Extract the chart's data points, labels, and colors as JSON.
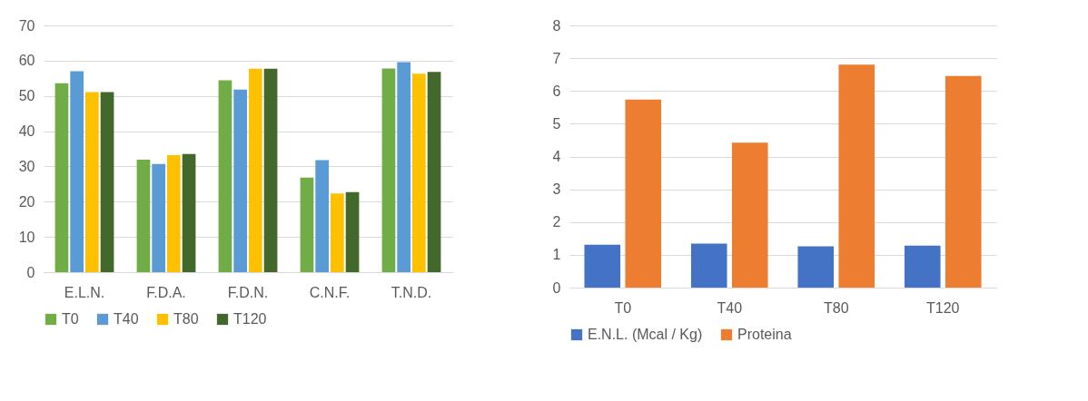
{
  "chart_data": [
    {
      "type": "bar",
      "categories": [
        "E.L.N.",
        "F.D.A.",
        "F.D.N.",
        "C.N.F.",
        "T.N.D."
      ],
      "series": [
        {
          "name": "T0",
          "color": "#70ad47",
          "values": [
            53.6,
            31.9,
            54.4,
            26.8,
            57.8
          ]
        },
        {
          "name": "T40",
          "color": "#5b9bd5",
          "values": [
            57.0,
            30.7,
            51.8,
            31.8,
            59.6
          ]
        },
        {
          "name": "T80",
          "color": "#ffc000",
          "values": [
            51.1,
            33.2,
            57.7,
            22.3,
            56.3
          ]
        },
        {
          "name": "T120",
          "color": "#43682b",
          "values": [
            51.1,
            33.5,
            57.7,
            22.7,
            56.8
          ]
        }
      ],
      "ylim": [
        0,
        70
      ],
      "yticks": [
        0,
        10,
        20,
        30,
        40,
        50,
        60,
        70
      ],
      "grid": "y",
      "legend": "bottom"
    },
    {
      "type": "bar",
      "categories": [
        "T0",
        "T40",
        "T80",
        "T120"
      ],
      "series": [
        {
          "name": "E.N.L. (Mcal / Kg)",
          "color": "#4472c4",
          "values": [
            1.31,
            1.34,
            1.26,
            1.28
          ]
        },
        {
          "name": "Proteina",
          "color": "#ed7d31",
          "values": [
            5.74,
            4.42,
            6.8,
            6.46
          ]
        }
      ],
      "ylim": [
        0,
        8
      ],
      "yticks": [
        0,
        1,
        2,
        3,
        4,
        5,
        6,
        7,
        8
      ],
      "grid": "y",
      "legend": "bottom"
    }
  ]
}
